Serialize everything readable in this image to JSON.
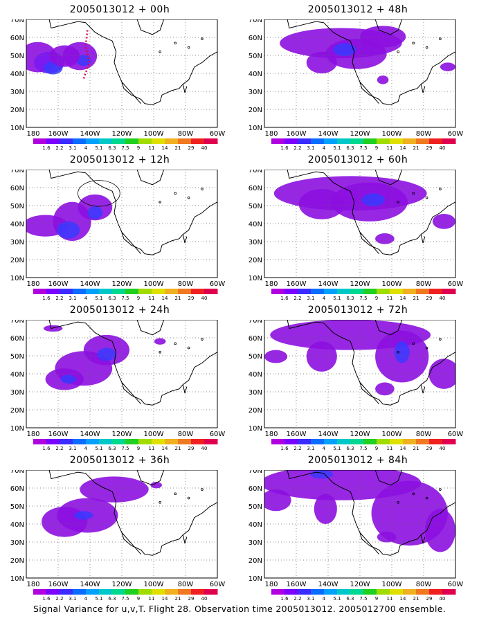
{
  "panels": [
    {
      "title": "2005013012 + 00h"
    },
    {
      "title": "2005013012 + 48h"
    },
    {
      "title": "2005013012 + 12h"
    },
    {
      "title": "2005013012 + 60h"
    },
    {
      "title": "2005013012 + 24h"
    },
    {
      "title": "2005013012 + 72h"
    },
    {
      "title": "2005013012 + 36h"
    },
    {
      "title": "2005013012 + 84h"
    }
  ],
  "y_ticks": [
    "70N",
    "60N",
    "50N",
    "40N",
    "30N",
    "20N",
    "10N"
  ],
  "x_ticks": [
    "180",
    "160W",
    "140W",
    "120W",
    "100W",
    "80W",
    "60W"
  ],
  "colorbar": {
    "labels": [
      "1.6",
      "2.2",
      "3.1",
      "4",
      "5.1",
      "6.3",
      "7.5",
      "9",
      "11",
      "14",
      "21",
      "29",
      "40"
    ],
    "colors": [
      "#b000e0",
      "#7a00ff",
      "#3a2bff",
      "#0a6cff",
      "#00a0ff",
      "#00c8c8",
      "#00d890",
      "#20d020",
      "#a0dc00",
      "#e0e000",
      "#f0b020",
      "#f07820",
      "#f02020",
      "#e00050"
    ]
  },
  "footer": "Signal Variance for u,v,T. Flight 28. Observation time 2005013012. 2005012700 ensemble."
}
